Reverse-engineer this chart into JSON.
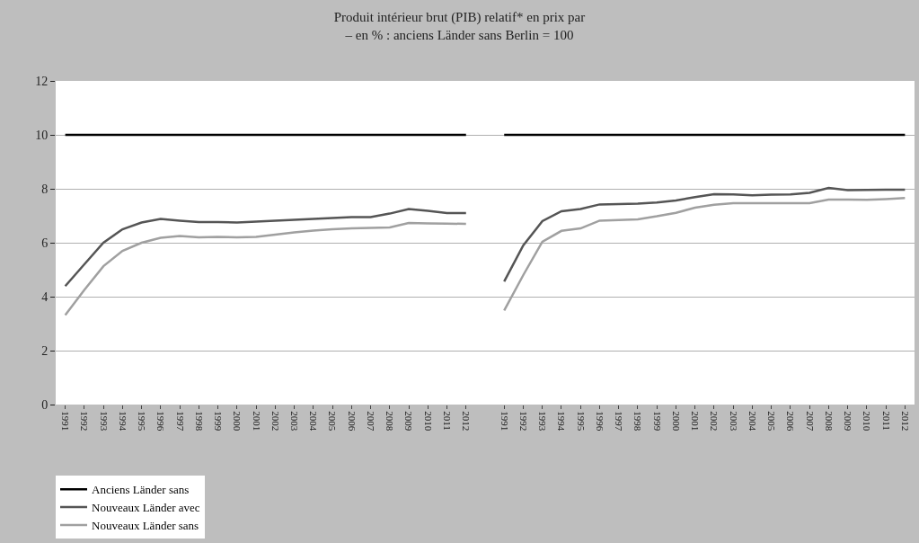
{
  "chart_data": {
    "type": "line",
    "title": "Produit intérieur brut (PIB) relatif* en prix par\n– en % : anciens Länder sans Berlin = 100",
    "categories": [
      "1991",
      "1992",
      "1993",
      "1994",
      "1995",
      "1996",
      "1997",
      "1998",
      "1999",
      "2000",
      "2001",
      "2002",
      "2003",
      "2004",
      "2005",
      "2006",
      "2007",
      "2008",
      "2009",
      "2010",
      "2011",
      "2012",
      null,
      "1991",
      "1992",
      "1993",
      "1994",
      "1995",
      "1996",
      "1997",
      "1998",
      "1999",
      "2000",
      "2001",
      "2002",
      "2003",
      "2004",
      "2005",
      "2006",
      "2007",
      "2008",
      "2009",
      "2010",
      "2011",
      "2012"
    ],
    "series": [
      {
        "name": "Anciens Länder sans",
        "color": "#000000",
        "values": [
          10,
          10,
          10,
          10,
          10,
          10,
          10,
          10,
          10,
          10,
          10,
          10,
          10,
          10,
          10,
          10,
          10,
          10,
          10,
          10,
          10,
          10,
          null,
          10,
          10,
          10,
          10,
          10,
          10,
          10,
          10,
          10,
          10,
          10,
          10,
          10,
          10,
          10,
          10,
          10,
          10,
          10,
          10,
          10,
          10
        ]
      },
      {
        "name": "Nouveaux Länder avec",
        "color": "#555555",
        "values": [
          4.39,
          5.2,
          6.0,
          6.5,
          6.75,
          6.88,
          6.82,
          6.77,
          6.77,
          6.75,
          6.78,
          6.82,
          6.85,
          6.88,
          6.92,
          6.95,
          6.95,
          7.08,
          7.25,
          7.18,
          7.1,
          7.1,
          null,
          4.56,
          5.9,
          6.8,
          7.17,
          7.25,
          7.42,
          7.43,
          7.45,
          7.49,
          7.57,
          7.69,
          7.8,
          7.79,
          7.76,
          7.78,
          7.79,
          7.85,
          8.03,
          7.95,
          7.96,
          7.97,
          7.97
        ]
      },
      {
        "name": "Nouveaux Länder sans",
        "color": "#a0a0a0",
        "values": [
          3.32,
          4.25,
          5.13,
          5.7,
          6.0,
          6.18,
          6.25,
          6.2,
          6.22,
          6.2,
          6.22,
          6.3,
          6.38,
          6.45,
          6.5,
          6.53,
          6.55,
          6.57,
          6.73,
          6.72,
          6.71,
          6.7,
          null,
          3.49,
          4.8,
          6.04,
          6.44,
          6.53,
          6.82,
          6.84,
          6.87,
          6.98,
          7.11,
          7.3,
          7.41,
          7.47,
          7.47,
          7.47,
          7.47,
          7.47,
          7.6,
          7.6,
          7.59,
          7.62,
          7.66
        ]
      }
    ],
    "ylim": [
      0,
      12
    ],
    "yticks": [
      0,
      2,
      4,
      6,
      8,
      10,
      12
    ],
    "grid": "y",
    "legend": "bottom left",
    "marker": "none",
    "line_style": "solid"
  }
}
